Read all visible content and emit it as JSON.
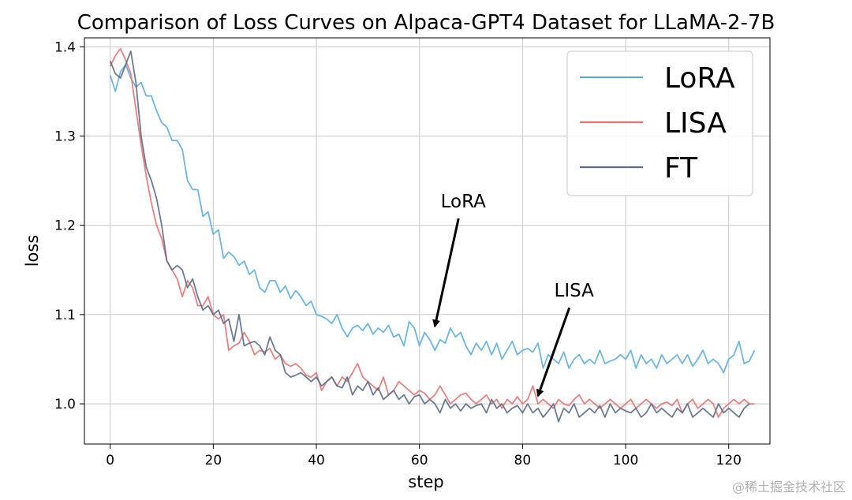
{
  "watermark": "@稀土掘金技术社区",
  "chart_data": {
    "type": "line",
    "title": "Comparison of Loss Curves on Alpaca-GPT4 Dataset for LLaMA-2-7B",
    "xlabel": "step",
    "ylabel": "loss",
    "xlim": [
      -5,
      128
    ],
    "ylim": [
      0.955,
      1.41
    ],
    "xticks": [
      "0",
      "20",
      "40",
      "60",
      "80",
      "100",
      "120"
    ],
    "yticks": [
      "1.0",
      "1.1",
      "1.2",
      "1.3",
      "1.4"
    ],
    "grid": true,
    "legend_position": "top-right",
    "series": [
      {
        "name": "LoRA",
        "color": "#5dade2",
        "x_start": 0,
        "values": [
          1.368,
          1.35,
          1.372,
          1.38,
          1.365,
          1.355,
          1.36,
          1.345,
          1.345,
          1.328,
          1.315,
          1.31,
          1.295,
          1.295,
          1.285,
          1.25,
          1.24,
          1.24,
          1.21,
          1.215,
          1.19,
          1.195,
          1.163,
          1.17,
          1.165,
          1.155,
          1.16,
          1.145,
          1.15,
          1.13,
          1.125,
          1.138,
          1.138,
          1.125,
          1.132,
          1.118,
          1.127,
          1.12,
          1.11,
          1.115,
          1.1,
          1.098,
          1.095,
          1.09,
          1.1,
          1.085,
          1.075,
          1.085,
          1.088,
          1.082,
          1.09,
          1.078,
          1.085,
          1.08,
          1.088,
          1.075,
          1.078,
          1.065,
          1.092,
          1.085,
          1.065,
          1.08,
          1.072,
          1.06,
          1.072,
          1.068,
          1.085,
          1.075,
          1.08,
          1.065,
          1.055,
          1.068,
          1.06,
          1.07,
          1.055,
          1.068,
          1.05,
          1.06,
          1.07,
          1.055,
          1.06,
          1.062,
          1.058,
          1.068,
          1.04,
          1.055,
          1.05,
          1.045,
          1.058,
          1.04,
          1.05,
          1.055,
          1.045,
          1.05,
          1.045,
          1.06,
          1.045,
          1.048,
          1.05,
          1.055,
          1.05,
          1.06,
          1.04,
          1.055,
          1.045,
          1.05,
          1.04,
          1.055,
          1.045,
          1.05,
          1.055,
          1.045,
          1.055,
          1.042,
          1.05,
          1.06,
          1.045,
          1.05,
          1.045,
          1.035,
          1.05,
          1.055,
          1.07,
          1.045,
          1.048,
          1.06
        ]
      },
      {
        "name": "LISA",
        "color": "#e57373",
        "x_start": 0,
        "values": [
          1.378,
          1.39,
          1.398,
          1.385,
          1.37,
          1.33,
          1.29,
          1.255,
          1.225,
          1.2,
          1.185,
          1.16,
          1.15,
          1.14,
          1.12,
          1.138,
          1.13,
          1.11,
          1.11,
          1.12,
          1.1,
          1.095,
          1.1,
          1.06,
          1.065,
          1.068,
          1.08,
          1.07,
          1.055,
          1.06,
          1.058,
          1.062,
          1.05,
          1.055,
          1.045,
          1.042,
          1.045,
          1.04,
          1.032,
          1.03,
          1.035,
          1.015,
          1.025,
          1.03,
          1.02,
          1.03,
          1.025,
          1.035,
          1.045,
          1.03,
          1.025,
          1.02,
          1.015,
          1.03,
          1.01,
          1.015,
          1.025,
          1.02,
          1.015,
          1.01,
          1.015,
          1.012,
          1.005,
          1.01,
          1.02,
          1.01,
          1.0,
          1.005,
          1.01,
          1.012,
          1.005,
          1.0,
          1.005,
          1.01,
          1.0,
          1.005,
          0.995,
          1.005,
          1.0,
          1.008,
          1.0,
          1.005,
          1.02,
          1.0,
          1.005,
          1.0,
          0.995,
          1.005,
          1.0,
          0.998,
          1.005,
          1.01,
          1.0,
          1.005,
          1.0,
          0.995,
          1.0,
          1.005,
          1.0,
          0.995,
          1.0,
          1.005,
          0.995,
          1.0,
          1.005,
          1.0,
          0.995,
          1.0,
          1.002,
          0.998,
          1.005,
          0.99,
          1.0,
          1.005,
          0.995,
          1.0,
          1.005,
          1.0,
          0.985,
          0.995,
          1.0,
          1.005,
          1.0,
          1.005,
          1.0,
          1.0
        ]
      },
      {
        "name": "FT",
        "color": "#5d6d85",
        "x_start": 0,
        "values": [
          1.384,
          1.37,
          1.365,
          1.38,
          1.395,
          1.36,
          1.3,
          1.265,
          1.25,
          1.23,
          1.2,
          1.16,
          1.15,
          1.155,
          1.15,
          1.13,
          1.14,
          1.12,
          1.105,
          1.11,
          1.1,
          1.105,
          1.09,
          1.095,
          1.07,
          1.1,
          1.065,
          1.068,
          1.07,
          1.065,
          1.055,
          1.075,
          1.06,
          1.055,
          1.035,
          1.03,
          1.032,
          1.035,
          1.03,
          1.025,
          1.03,
          1.02,
          1.025,
          1.03,
          1.02,
          1.018,
          1.03,
          1.01,
          1.02,
          1.015,
          1.025,
          1.01,
          1.018,
          1.005,
          1.01,
          1.015,
          1.005,
          1.01,
          1.0,
          1.008,
          1.01,
          1.0,
          1.005,
          1.0,
          0.99,
          1.005,
          0.995,
          1.0,
          0.992,
          1.0,
          0.995,
          0.998,
          1.0,
          0.99,
          1.005,
          0.995,
          1.0,
          0.99,
          0.995,
          0.998,
          0.99,
          1.0,
          0.99,
          0.995,
          0.985,
          0.992,
          1.0,
          0.98,
          0.995,
          0.99,
          1.0,
          0.985,
          0.99,
          0.995,
          0.99,
          0.998,
          0.985,
          1.0,
          0.99,
          0.995,
          0.992,
          0.99,
          0.995,
          0.985,
          0.99,
          1.0,
          0.99,
          0.995,
          0.99,
          0.985,
          0.995,
          0.99,
          1.0,
          0.985,
          0.99,
          0.995,
          0.99,
          0.985,
          1.0,
          0.99,
          0.995,
          0.99,
          0.985,
          0.995,
          1.0
        ]
      }
    ],
    "annotations": [
      {
        "text": "LoRA",
        "text_x": 68.5,
        "text_y": 1.22,
        "arrow_to_x": 63,
        "arrow_to_y": 1.087
      },
      {
        "text": "LISA",
        "text_x": 90,
        "text_y": 1.12,
        "arrow_to_x": 83,
        "arrow_to_y": 1.009
      }
    ]
  }
}
